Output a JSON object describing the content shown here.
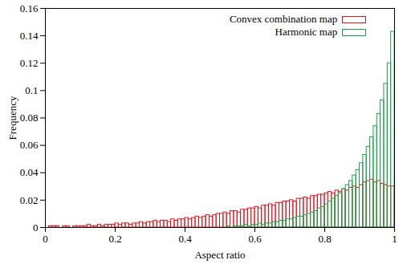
{
  "chart_data": {
    "type": "histogram",
    "x_label": "Aspect ratio",
    "y_label": "Frequency",
    "bins": [
      0,
      0.01,
      0.02,
      0.03,
      0.04,
      0.05,
      0.06,
      0.07,
      0.08,
      0.09,
      0.1,
      0.11,
      0.12,
      0.13,
      0.14,
      0.15,
      0.16,
      0.17,
      0.18,
      0.19,
      0.2,
      0.21,
      0.22,
      0.23,
      0.24,
      0.25,
      0.26,
      0.27,
      0.28,
      0.29,
      0.3,
      0.31,
      0.32,
      0.33,
      0.34,
      0.35,
      0.36,
      0.37,
      0.38,
      0.39,
      0.4,
      0.41,
      0.42,
      0.43,
      0.44,
      0.45,
      0.46,
      0.47,
      0.48,
      0.49,
      0.5,
      0.51,
      0.52,
      0.53,
      0.54,
      0.55,
      0.56,
      0.57,
      0.58,
      0.59,
      0.6,
      0.61,
      0.62,
      0.63,
      0.64,
      0.65,
      0.66,
      0.67,
      0.68,
      0.69,
      0.7,
      0.71,
      0.72,
      0.73,
      0.74,
      0.75,
      0.76,
      0.77,
      0.78,
      0.79,
      0.8,
      0.81,
      0.82,
      0.83,
      0.84,
      0.85,
      0.86,
      0.87,
      0.88,
      0.89,
      0.9,
      0.91,
      0.92,
      0.93,
      0.94,
      0.95,
      0.96,
      0.97,
      0.98,
      0.99,
      1
    ],
    "series": [
      {
        "name": "Convex combination map",
        "color": "#e3141e",
        "values": [
          0,
          0.001,
          0.001,
          0.001,
          0,
          0.001,
          0.001,
          0,
          0.001,
          0.001,
          0.001,
          0.001,
          0.002,
          0.001,
          0.001,
          0.002,
          0.001,
          0.002,
          0.002,
          0.002,
          0.003,
          0.002,
          0.003,
          0.003,
          0.002,
          0.003,
          0.003,
          0.004,
          0.003,
          0.004,
          0.004,
          0.005,
          0.004,
          0.005,
          0.005,
          0.004,
          0.006,
          0.005,
          0.006,
          0.006,
          0.007,
          0.006,
          0.007,
          0.008,
          0.007,
          0.008,
          0.009,
          0.008,
          0.009,
          0.01,
          0.01,
          0.011,
          0.01,
          0.012,
          0.012,
          0.011,
          0.013,
          0.013,
          0.014,
          0.014,
          0.015,
          0.014,
          0.016,
          0.016,
          0.017,
          0.016,
          0.018,
          0.018,
          0.019,
          0.019,
          0.02,
          0.019,
          0.021,
          0.021,
          0.022,
          0.021,
          0.023,
          0.023,
          0.024,
          0.024,
          0.025,
          0.026,
          0.025,
          0.027,
          0.026,
          0.028,
          0.027,
          0.029,
          0.03,
          0.029,
          0.031,
          0.033,
          0.034,
          0.035,
          0.033,
          0.034,
          0.032,
          0.031,
          0.03,
          0.03
        ]
      },
      {
        "name": "Harmonic map",
        "color": "#1ba34a",
        "values": [
          0,
          0,
          0,
          0,
          0,
          0,
          0,
          0,
          0,
          0,
          0,
          0,
          0,
          0,
          0,
          0,
          0,
          0,
          0,
          0,
          0,
          0,
          0,
          0,
          0,
          0,
          0,
          0,
          0,
          0,
          0,
          0,
          0,
          0,
          0,
          0,
          0,
          0,
          0,
          0,
          0,
          0,
          0,
          0,
          0,
          0,
          0,
          0,
          0,
          0,
          0,
          0,
          0.001,
          0,
          0.001,
          0.001,
          0.001,
          0.002,
          0.001,
          0.002,
          0.002,
          0.003,
          0.002,
          0.003,
          0.003,
          0.004,
          0.004,
          0.005,
          0.005,
          0.006,
          0.006,
          0.007,
          0.008,
          0.008,
          0.009,
          0.01,
          0.011,
          0.012,
          0.014,
          0.015,
          0.017,
          0.019,
          0.021,
          0.023,
          0.025,
          0.028,
          0.031,
          0.034,
          0.038,
          0.042,
          0.047,
          0.053,
          0.059,
          0.066,
          0.074,
          0.083,
          0.093,
          0.105,
          0.12,
          0.143
        ]
      }
    ],
    "xlim": [
      0,
      1
    ],
    "ylim": [
      0,
      0.16
    ],
    "xticks": [
      0,
      0.2,
      0.4,
      0.6,
      0.8,
      1
    ],
    "yticks": [
      0,
      0.02,
      0.04,
      0.06,
      0.08,
      0.1,
      0.12,
      0.14,
      0.16
    ],
    "legend": "top-right"
  }
}
